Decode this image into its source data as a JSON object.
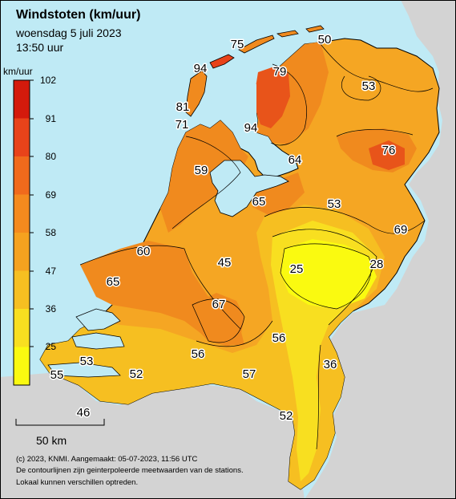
{
  "title": "Windstoten (km/uur)",
  "date": "woensdag 5 juli 2023",
  "time": "13:50 uur",
  "legend": {
    "unit": "km/uur",
    "ticks": [
      "102",
      "91",
      "80",
      "69",
      "58",
      "47",
      "36",
      "25"
    ],
    "colors": [
      "#d41a0c",
      "#e8431a",
      "#f06a1c",
      "#f48a1e",
      "#f5a21f",
      "#f6bf21",
      "#f8df20",
      "#fafa10"
    ]
  },
  "scale_label": "50 km",
  "footer": {
    "line1": "(c) 2023, KNMI. Aangemaakt: 05-07-2023, 11:56 UTC",
    "line2": "De contourlijnen zijn geinterpoleerde meetwaarden van de stations.",
    "line3": "Lokaal kunnen verschillen optreden."
  },
  "stations": [
    "75",
    "50",
    "94",
    "79",
    "53",
    "81",
    "71",
    "94",
    "76",
    "64",
    "59",
    "65",
    "53",
    "69",
    "60",
    "45",
    "25",
    "28",
    "65",
    "67",
    "56",
    "53",
    "56",
    "36",
    "55",
    "52",
    "57",
    "46",
    "52"
  ]
}
